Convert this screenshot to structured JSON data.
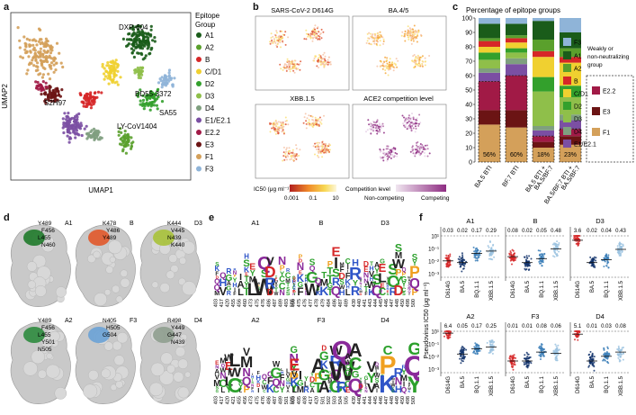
{
  "panel_labels": [
    "a",
    "b",
    "c",
    "d",
    "e",
    "f"
  ],
  "panel_a": {
    "xlabel": "UMAP1",
    "ylabel": "UMAP2",
    "legend_title": "Epitope Group",
    "legend": [
      {
        "name": "A1",
        "color": "#1a5c1a"
      },
      {
        "name": "A2",
        "color": "#5aa02c"
      },
      {
        "name": "B",
        "color": "#d62728"
      },
      {
        "name": "C/D1",
        "color": "#f0d030"
      },
      {
        "name": "D2",
        "color": "#33a02c"
      },
      {
        "name": "D3",
        "color": "#8fbf4a"
      },
      {
        "name": "D4",
        "color": "#7f9f7f"
      },
      {
        "name": "E1/E2.1",
        "color": "#7b4fa3"
      },
      {
        "name": "E2.2",
        "color": "#a11a46"
      },
      {
        "name": "E3",
        "color": "#6b1414"
      },
      {
        "name": "F1",
        "color": "#d4a05a"
      },
      {
        "name": "F3",
        "color": "#8fb4d8"
      }
    ],
    "annotations": [
      "DXP-604",
      "BD55-3372",
      "SA55",
      "LY-CoV1404",
      "S2H97"
    ]
  },
  "panel_b": {
    "titles": [
      "SARS-CoV-2 D614G",
      "BA.4/5",
      "XBB.1.5",
      "ACE2 competition level"
    ],
    "ic50_label": "IC50 (μg ml⁻¹)",
    "ic50_ticks": [
      "0.001",
      "0.1",
      "10"
    ],
    "comp_label": "Competition level",
    "comp_ticks": [
      "Non-competing",
      "Competing"
    ]
  },
  "panel_c": {
    "title": "Percentage of epitope groups",
    "yticks": [
      "0",
      "10",
      "20",
      "30",
      "40",
      "50",
      "60",
      "70",
      "80",
      "90",
      "100"
    ],
    "bar_labels": [
      "BA.5 BTI",
      "BF.7 BTI",
      "BA.5 BTI + BA.5/BF.7",
      "BA.5/BF.7 BTI + BA.5/BF.7"
    ],
    "bar_labels_top": [
      "BA.5 BTI",
      "BF.7 BTI",
      "BA.5 BTI +",
      "BA.5/BF.7 BTI +"
    ],
    "bar_labels_bottom": [
      "",
      "",
      "BA.5/BF.7",
      "BA.5/BF.7"
    ],
    "weak_pct": [
      "56%",
      "60%",
      "18%",
      "23%"
    ],
    "legend_title": "Weakly or non-neutralizing group",
    "legend_title_lines": [
      "Weakly or",
      "non-neutralizing",
      "group"
    ],
    "legend": [
      {
        "name": "F3",
        "color": "#8fb4d8"
      },
      {
        "name": "A1",
        "color": "#1a5c1a"
      },
      {
        "name": "A2",
        "color": "#5aa02c"
      },
      {
        "name": "B",
        "color": "#d62728"
      },
      {
        "name": "C/D1",
        "color": "#f0d030"
      },
      {
        "name": "D2",
        "color": "#33a02c"
      },
      {
        "name": "D3",
        "color": "#8fbf4a"
      },
      {
        "name": "D4",
        "color": "#7f9f7f"
      },
      {
        "name": "E1/E2.1",
        "color": "#7b4fa3"
      },
      {
        "name": "E2.2",
        "color": "#a11a46"
      },
      {
        "name": "E3",
        "color": "#6b1414"
      },
      {
        "name": "F1",
        "color": "#d4a05a"
      }
    ]
  },
  "panel_d": {
    "structures": [
      {
        "group": "A1",
        "residues": [
          "Y489",
          "F456",
          "L455",
          "N460"
        ]
      },
      {
        "group": "B",
        "residues": [
          "K478",
          "Y486",
          "Y489"
        ]
      },
      {
        "group": "D3",
        "residues": [
          "K444",
          "V445",
          "N439",
          "K440"
        ]
      },
      {
        "group": "A2",
        "residues": [
          "Y489",
          "F456",
          "L455",
          "Y501",
          "N505"
        ]
      },
      {
        "group": "F3",
        "residues": [
          "N405",
          "H505",
          "G504"
        ]
      },
      {
        "group": "D4",
        "residues": [
          "R498",
          "Y449",
          "G447",
          "N439"
        ]
      }
    ]
  },
  "panel_e": {
    "logos": [
      {
        "group": "A1",
        "positions": [
          "403",
          "417",
          "420",
          "455",
          "456",
          "460",
          "473",
          "475",
          "476",
          "486",
          "487",
          "489",
          "493",
          "505"
        ]
      },
      {
        "group": "B",
        "positions": [
          "456",
          "475",
          "476",
          "477",
          "478",
          "479",
          "484",
          "486",
          "487",
          "489"
        ]
      },
      {
        "group": "D3",
        "positions": [
          "439",
          "440",
          "441",
          "443",
          "444",
          "445",
          "446",
          "447",
          "448",
          "450",
          "498",
          "500"
        ]
      },
      {
        "group": "A2",
        "positions": [
          "403",
          "417",
          "420",
          "421",
          "455",
          "456",
          "473",
          "475",
          "476",
          "486",
          "487",
          "489",
          "501",
          "505"
        ]
      },
      {
        "group": "F3",
        "positions": [
          "403",
          "405",
          "408",
          "417",
          "420",
          "501",
          "502",
          "503",
          "504",
          "505"
        ]
      },
      {
        "group": "D4",
        "positions": [
          "439",
          "440",
          "441",
          "444",
          "445",
          "446",
          "447",
          "448",
          "449",
          "450",
          "498",
          "500"
        ]
      }
    ]
  },
  "panel_f": {
    "ylabel": "Pseudovirus IC50 (μg ml⁻¹)",
    "yticks": [
      "10¹",
      "10⁻¹",
      "10⁻²",
      "10⁻³"
    ],
    "xcats": [
      "D614G",
      "BA.5",
      "BQ.1.1",
      "XBB.1.5"
    ],
    "groups": [
      {
        "name": "A1",
        "values": [
          "0.03",
          "0.02",
          "0.17",
          "0.29"
        ]
      },
      {
        "name": "B",
        "values": [
          "0.08",
          "0.02",
          "0.05",
          "0.48"
        ]
      },
      {
        "name": "D3",
        "values": [
          "3.6",
          "0.02",
          "0.04",
          "0.43"
        ]
      },
      {
        "name": "A2",
        "values": [
          "6.4",
          "0.05",
          "0.17",
          "0.25"
        ]
      },
      {
        "name": "F3",
        "values": [
          "0.01",
          "0.01",
          "0.08",
          "0.06"
        ]
      },
      {
        "name": "D4",
        "values": [
          "5.1",
          "0.01",
          "0.03",
          "0.08"
        ]
      }
    ],
    "colors": [
      "#d62728",
      "#12336b",
      "#3c7fb8",
      "#9cc3e0"
    ]
  }
}
